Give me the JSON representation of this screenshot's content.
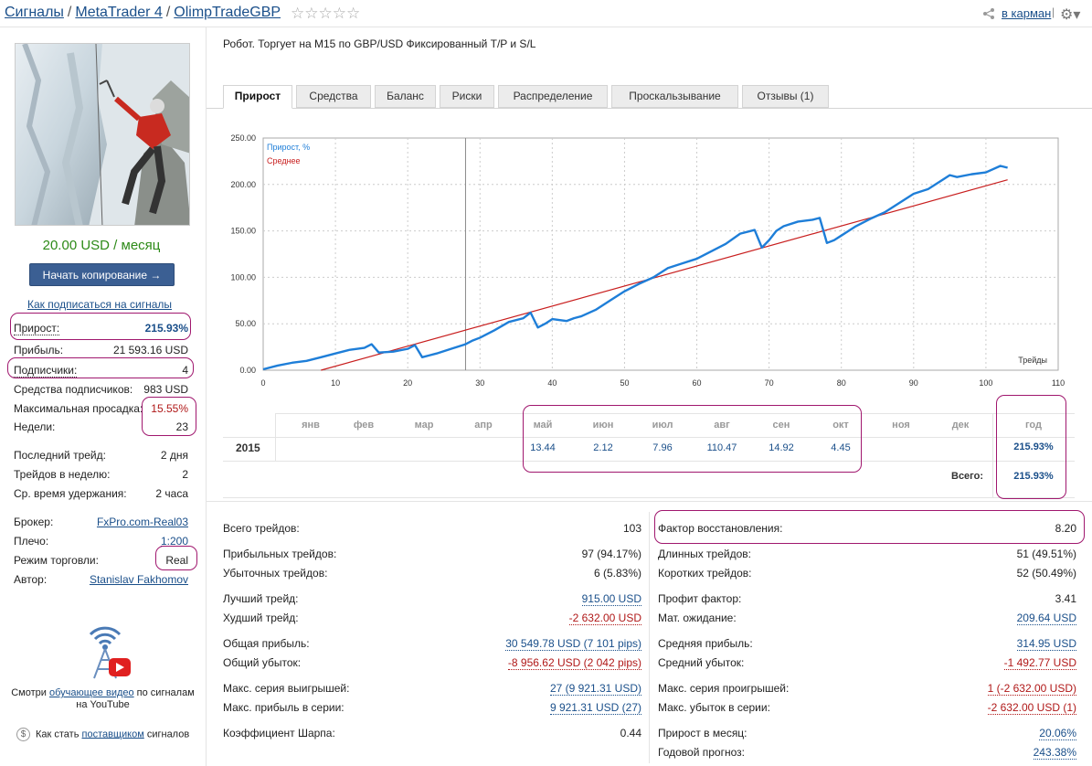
{
  "breadcrumb": {
    "signals": "Сигналы",
    "sep1": "/",
    "platform": "MetaTrader 4",
    "sep2": "/",
    "signal_name": "OlimpTradeGBP",
    "stars": "☆☆☆☆☆",
    "to_pocket": "в карман",
    "divider": "|"
  },
  "sidebar": {
    "price": "20.00 USD / месяц",
    "copy_button": "Начать копирование →",
    "how_subscribe": "Как подписаться на сигналы",
    "stats": [
      {
        "label": "Прирост:",
        "value": "215.93%"
      },
      {
        "label": "Прибыль:",
        "value": "21 593.16 USD"
      },
      {
        "label": "Подписчики:",
        "value": "4"
      },
      {
        "label": "Средства подписчиков:",
        "value": "983 USD"
      },
      {
        "label": "Максимальная просадка:",
        "value": "15.55%"
      },
      {
        "label": "Недели:",
        "value": "23"
      },
      {
        "label": "Последний трейд:",
        "value": "2 дня"
      },
      {
        "label": "Трейдов в неделю:",
        "value": "2"
      },
      {
        "label": "Ср. время удержания:",
        "value": "2 часа"
      },
      {
        "label": "Брокер:",
        "value": "FxPro.com-Real03"
      },
      {
        "label": "Плечо:",
        "value": "1:200"
      },
      {
        "label": "Режим торговли:",
        "value": "Real"
      },
      {
        "label": "Автор:",
        "value": "Stanislav Fakhomov"
      }
    ],
    "video": {
      "pre": "Смотри ",
      "link": "обучающее видео",
      "post": " по сигналам",
      "line2": "на YouTube"
    },
    "provider": {
      "pre": "Как стать ",
      "link": "поставщиком",
      "post": " сигналов",
      "icon": "$"
    }
  },
  "description": "Робот. Торгует на M15 по GBP/USD  Фиксированный T/P и S/L",
  "tabs": [
    "Прирост",
    "Средства",
    "Баланс",
    "Риски",
    "Распределение",
    "Проскальзывание",
    "Отзывы (1)"
  ],
  "chart_data": {
    "type": "line",
    "series": [
      {
        "name": "Прирост, %",
        "color": "#1e7ed8",
        "x": [
          0,
          2,
          4,
          6,
          8,
          10,
          12,
          14,
          15,
          16,
          18,
          20,
          21,
          22,
          23,
          24,
          26,
          28,
          29,
          30,
          32,
          34,
          36,
          37,
          38,
          39,
          40,
          42,
          43,
          44,
          46,
          48,
          50,
          52,
          54,
          56,
          58,
          60,
          62,
          64,
          66,
          68,
          69,
          70,
          71,
          72,
          74,
          76,
          77,
          78,
          79,
          80,
          82,
          84,
          86,
          88,
          90,
          92,
          94,
          95,
          96,
          98,
          100,
          102,
          103
        ],
        "y": [
          1,
          5,
          8,
          10,
          14,
          18,
          22,
          24,
          28,
          19,
          20,
          23,
          27,
          14,
          16,
          18,
          23,
          28,
          32,
          35,
          43,
          52,
          56,
          62,
          46,
          50,
          55,
          53,
          56,
          58,
          65,
          75,
          85,
          93,
          100,
          110,
          115,
          120,
          128,
          136,
          147,
          151,
          132,
          140,
          150,
          155,
          160,
          162,
          164,
          137,
          140,
          145,
          155,
          163,
          170,
          180,
          190,
          195,
          205,
          210,
          208,
          211,
          213,
          220,
          218
        ]
      },
      {
        "name": "Среднее",
        "color": "#c81e1e",
        "x": [
          8,
          103
        ],
        "y": [
          0,
          205
        ]
      }
    ],
    "xlabel": "Трейды",
    "x_ticks": [
      "0",
      "10",
      "20",
      "30",
      "40",
      "50",
      "60",
      "70",
      "80",
      "90",
      "100",
      "110"
    ],
    "y_ticks": [
      "0.00",
      "50.00",
      "100.00",
      "150.00",
      "200.00",
      "250.00"
    ],
    "xlim": [
      0,
      110
    ],
    "ylim": [
      0,
      250
    ],
    "vline_x": 28,
    "legend": "top-left",
    "grid": true
  },
  "monthly": {
    "months": [
      "янв",
      "фев",
      "мар",
      "апр",
      "май",
      "июн",
      "июл",
      "авг",
      "сен",
      "окт",
      "ноя",
      "дек"
    ],
    "year_header": "год",
    "year": "2015",
    "values": [
      "",
      "",
      "",
      "",
      "13.44",
      "2.12",
      "7.96",
      "110.47",
      "14.92",
      "4.45",
      "",
      ""
    ],
    "year_total": "215.93%",
    "total_label": "Всего:",
    "grand_total": "215.93%"
  },
  "stats_left": [
    {
      "label": "Всего трейдов:",
      "value": "103"
    },
    {
      "label": "Прибыльных трейдов:",
      "value": "97 (94.17%)"
    },
    {
      "label": "Убыточных трейдов:",
      "value": "6 (5.83%)"
    },
    {
      "label": "Лучший трейд:",
      "value": "915.00 USD"
    },
    {
      "label": "Худший трейд:",
      "value": "-2 632.00 USD"
    },
    {
      "label": "Общая прибыль:",
      "value": "30 549.78 USD (7 101 pips)"
    },
    {
      "label": "Общий убыток:",
      "value": "-8 956.62 USD (2 042 pips)"
    },
    {
      "label": "Макс. серия выигрышей:",
      "value": "27 (9 921.31 USD)"
    },
    {
      "label": "Макс. прибыль в серии:",
      "value": "9 921.31 USD (27)"
    },
    {
      "label": "Коэффициент Шарпа:",
      "value": "0.44"
    }
  ],
  "stats_right": [
    {
      "label": "Фактор восстановления:",
      "value": "8.20"
    },
    {
      "label": "Длинных трейдов:",
      "value": "51 (49.51%)"
    },
    {
      "label": "Коротких трейдов:",
      "value": "52 (50.49%)"
    },
    {
      "label": "Профит фактор:",
      "value": "3.41"
    },
    {
      "label": "Мат. ожидание:",
      "value": "209.64 USD"
    },
    {
      "label": "Средняя прибыль:",
      "value": "314.95 USD"
    },
    {
      "label": "Средний убыток:",
      "value": "-1 492.77 USD"
    },
    {
      "label": "Макс. серия проигрышей:",
      "value": "1 (-2 632.00 USD)"
    },
    {
      "label": "Макс. убыток в серии:",
      "value": "-2 632.00 USD (1)"
    },
    {
      "label": "Прирост в месяц:",
      "value": "20.06%"
    },
    {
      "label": "Годовой прогноз:",
      "value": "243.38%"
    }
  ],
  "colors": {
    "accent": "#1a4f8a",
    "positive": "#2d8a18",
    "negative": "#b01818",
    "highlight": "#a0176e",
    "button": "#3b5f93"
  },
  "icons": {
    "share": "share-icon",
    "settings": "gear-icon",
    "youtube": "youtube-antenna-icon"
  }
}
